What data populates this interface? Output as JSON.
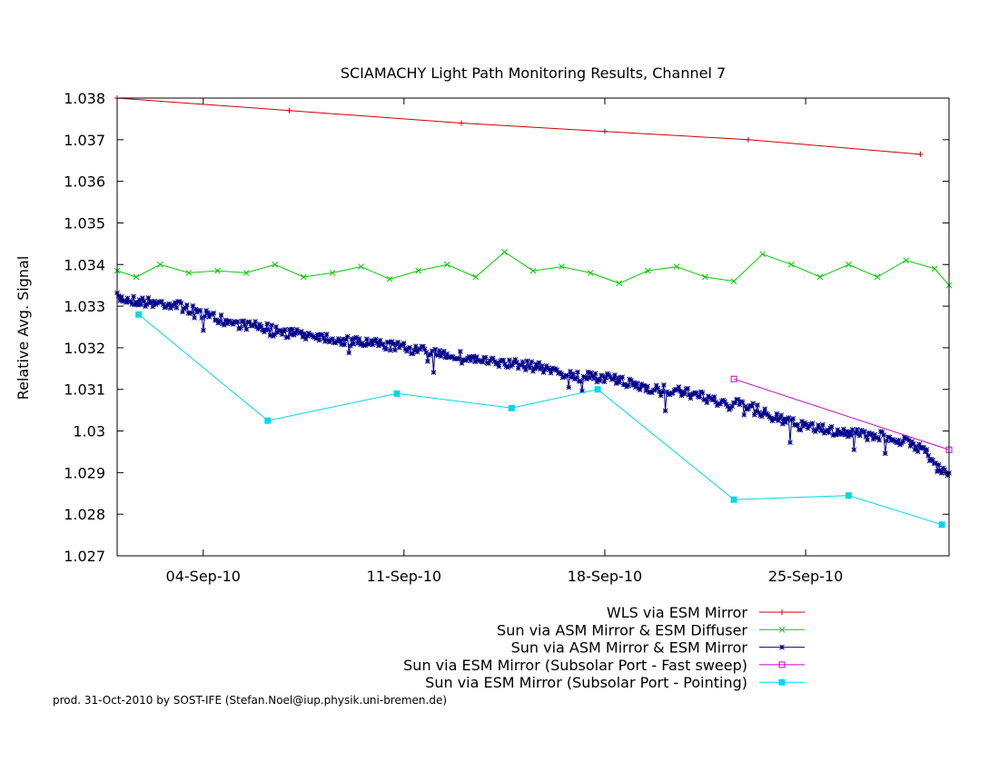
{
  "footer": "prod. 31-Oct-2010 by SOST-IFE (Stefan.Noel@iup.physik.uni-bremen.de)",
  "chart_data": {
    "type": "line",
    "title": "SCIAMACHY Light Path Monitoring Results, Channel 7",
    "xlabel": "",
    "ylabel": "Relative Avg. Signal",
    "x_unit": "date (2010)",
    "xlim": [
      "2010-09-01T00:00",
      "2010-09-30T00:00"
    ],
    "ylim": [
      1.027,
      1.038
    ],
    "yticks": [
      "1.027",
      "1.028",
      "1.029",
      "1.03",
      "1.031",
      "1.032",
      "1.033",
      "1.034",
      "1.035",
      "1.036",
      "1.037",
      "1.038"
    ],
    "xticks": [
      {
        "date": "2010-09-04T00:00",
        "label": "04-Sep-10"
      },
      {
        "date": "2010-09-11T00:00",
        "label": "11-Sep-10"
      },
      {
        "date": "2010-09-18T00:00",
        "label": "18-Sep-10"
      },
      {
        "date": "2010-09-25T00:00",
        "label": "25-Sep-10"
      }
    ],
    "grid": false,
    "legend_position": "bottom-right, below plot",
    "series": [
      {
        "name": "WLS via ESM Mirror",
        "color": "#cc0000",
        "marker": "plus",
        "x": [
          "2010-09-01T00:00",
          "2010-09-07T00:00",
          "2010-09-13T00:00",
          "2010-09-18T00:00",
          "2010-09-23T00:00",
          "2010-09-29T00:00"
        ],
        "y": [
          1.038,
          1.0377,
          1.0374,
          1.0372,
          1.037,
          1.03665
        ]
      },
      {
        "name": "Sun via ASM Mirror & ESM Diffuser",
        "color": "#00cc00",
        "marker": "x",
        "x": [
          "2010-09-01T00:00",
          "2010-09-01T16:00",
          "2010-09-02T12:00",
          "2010-09-03T12:00",
          "2010-09-04T12:00",
          "2010-09-05T12:00",
          "2010-09-06T12:00",
          "2010-09-07T12:00",
          "2010-09-08T12:00",
          "2010-09-09T12:00",
          "2010-09-10T12:00",
          "2010-09-11T12:00",
          "2010-09-12T12:00",
          "2010-09-13T12:00",
          "2010-09-14T12:00",
          "2010-09-15T12:00",
          "2010-09-16T12:00",
          "2010-09-17T12:00",
          "2010-09-18T12:00",
          "2010-09-19T12:00",
          "2010-09-20T12:00",
          "2010-09-21T12:00",
          "2010-09-22T12:00",
          "2010-09-23T12:00",
          "2010-09-24T12:00",
          "2010-09-25T12:00",
          "2010-09-26T12:00",
          "2010-09-27T12:00",
          "2010-09-28T12:00",
          "2010-09-29T12:00",
          "2010-09-30T00:00"
        ],
        "y": [
          1.03385,
          1.0337,
          1.034,
          1.0338,
          1.03385,
          1.0338,
          1.034,
          1.0337,
          1.0338,
          1.03395,
          1.03365,
          1.03385,
          1.034,
          1.0337,
          1.0343,
          1.03385,
          1.03395,
          1.0338,
          1.03355,
          1.03385,
          1.03395,
          1.0337,
          1.0336,
          1.03425,
          1.034,
          1.0337,
          1.034,
          1.0337,
          1.0341,
          1.0339,
          1.0335
        ]
      },
      {
        "name": "Sun via ASM Mirror & ESM Mirror",
        "color": "#00008b",
        "marker": "star",
        "dense": true,
        "noise": 0.00012,
        "x": [
          "2010-09-01T00:00",
          "2010-09-02T00:00",
          "2010-09-03T00:00",
          "2010-09-04T00:00",
          "2010-09-05T00:00",
          "2010-09-06T00:00",
          "2010-09-07T00:00",
          "2010-09-08T00:00",
          "2010-09-09T00:00",
          "2010-09-10T00:00",
          "2010-09-11T00:00",
          "2010-09-12T00:00",
          "2010-09-13T00:00",
          "2010-09-14T00:00",
          "2010-09-15T00:00",
          "2010-09-16T00:00",
          "2010-09-17T00:00",
          "2010-09-18T00:00",
          "2010-09-19T00:00",
          "2010-09-20T00:00",
          "2010-09-21T00:00",
          "2010-09-22T00:00",
          "2010-09-23T00:00",
          "2010-09-24T00:00",
          "2010-09-25T00:00",
          "2010-09-26T00:00",
          "2010-09-27T00:00",
          "2010-09-28T00:00",
          "2010-09-29T00:00",
          "2010-09-30T00:00"
        ],
        "y": [
          1.0332,
          1.0331,
          1.03305,
          1.0328,
          1.0326,
          1.0325,
          1.03235,
          1.0323,
          1.03215,
          1.0321,
          1.032,
          1.0319,
          1.0318,
          1.03165,
          1.0316,
          1.0315,
          1.0313,
          1.0313,
          1.0311,
          1.031,
          1.0309,
          1.0307,
          1.0306,
          1.0303,
          1.0301,
          1.03,
          1.0299,
          1.02985,
          1.0296,
          1.0289
        ]
      },
      {
        "name": "Sun via ESM Mirror (Subsolar Port - Fast sweep)",
        "color": "#cc00cc",
        "marker": "box",
        "x": [
          "2010-09-22T12:00",
          "2010-09-30T00:00"
        ],
        "y": [
          1.03125,
          1.02955
        ]
      },
      {
        "name": "Sun via ESM Mirror (Subsolar Port - Pointing)",
        "color": "#00d8e8",
        "marker": "filled-box",
        "x": [
          "2010-09-01T18:00",
          "2010-09-06T06:00",
          "2010-09-10T18:00",
          "2010-09-14T18:00",
          "2010-09-17T18:00",
          "2010-09-22T12:00",
          "2010-09-26T12:00",
          "2010-09-29T18:00"
        ],
        "y": [
          1.0328,
          1.03025,
          1.0309,
          1.03055,
          1.031,
          1.02835,
          1.02845,
          1.02775
        ]
      }
    ]
  }
}
